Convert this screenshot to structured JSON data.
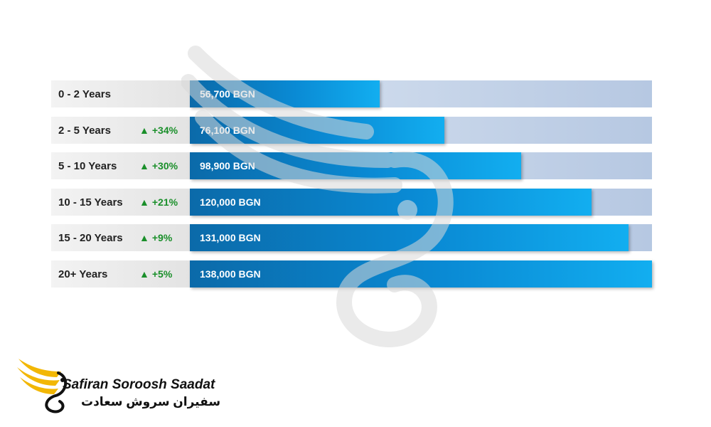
{
  "chart_data": {
    "type": "bar",
    "orientation": "horizontal",
    "xlim": [
      0,
      138000
    ],
    "categories": [
      "0 - 2 Years",
      "2 - 5 Years",
      "5 - 10 Years",
      "10 - 15 Years",
      "15 - 20 Years",
      "20+ Years"
    ],
    "values": [
      56700,
      76100,
      98900,
      120000,
      131000,
      138000
    ],
    "value_labels": [
      "56,700 BGN",
      "76,100 BGN",
      "98,900 BGN",
      "120,000 BGN",
      "131,000 BGN",
      "138,000 BGN"
    ],
    "growth_labels": [
      "",
      "+34%",
      "+30%",
      "+21%",
      "+9%",
      "+5%"
    ],
    "colors": {
      "bar_start": "#0b6aa9",
      "bar_end": "#12aef0",
      "track": "#c7d5ea",
      "growth": "#1a8f2a"
    }
  },
  "logo": {
    "name_en": "Safiran Soroosh Saadat",
    "name_fa": "سفیران سروش سعادت",
    "accent": "#f2b705"
  }
}
